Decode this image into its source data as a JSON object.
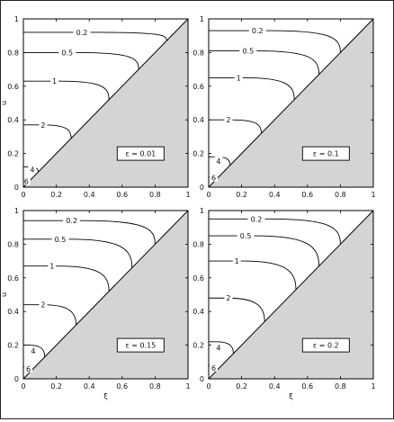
{
  "chart_data": [
    {
      "type": "line",
      "subtype": "contour",
      "legend": "ε = 0.01",
      "xlabel": "",
      "ylabel": "u",
      "xlim": [
        0,
        1
      ],
      "ylim": [
        0,
        1
      ],
      "x_ticks": [
        "0",
        "0.2",
        "0.4",
        "0.6",
        "0.8",
        "1"
      ],
      "y_ticks": [
        "0",
        "0.2",
        "0.4",
        "0.6",
        "0.8",
        "1"
      ],
      "shaded_region": "below diagonal y = x",
      "contours": [
        {
          "level": "0.2",
          "y_left": 0.92,
          "meets_diagonal_at": 0.87
        },
        {
          "level": "0.5",
          "y_left": 0.8,
          "meets_diagonal_at": 0.7
        },
        {
          "level": "1",
          "y_left": 0.63,
          "meets_diagonal_at": 0.52
        },
        {
          "level": "2",
          "y_left": 0.37,
          "meets_diagonal_at": 0.29
        },
        {
          "level": "4",
          "y_left": 0.12,
          "meets_diagonal_at": 0.09
        },
        {
          "level": "6",
          "y_left": 0.04,
          "meets_diagonal_at": 0.03
        }
      ]
    },
    {
      "type": "line",
      "subtype": "contour",
      "legend": "ε = 0.1",
      "xlabel": "",
      "ylabel": "",
      "xlim": [
        0,
        1
      ],
      "ylim": [
        0,
        1
      ],
      "x_ticks": [
        "0",
        "0.2",
        "0.4",
        "0.6",
        "0.8",
        "1"
      ],
      "y_ticks": [
        "0",
        "0.2",
        "0.4",
        "0.6",
        "0.8",
        "1"
      ],
      "shaded_region": "below diagonal y = x",
      "contours": [
        {
          "level": "0.2",
          "y_left": 0.93,
          "meets_diagonal_at": 0.8
        },
        {
          "level": "0.5",
          "y_left": 0.81,
          "meets_diagonal_at": 0.67
        },
        {
          "level": "1",
          "y_left": 0.65,
          "meets_diagonal_at": 0.52
        },
        {
          "level": "2",
          "y_left": 0.4,
          "meets_diagonal_at": 0.32
        },
        {
          "level": "4",
          "y_left": 0.18,
          "meets_diagonal_at": 0.13
        },
        {
          "level": "6",
          "y_left": 0.06,
          "meets_diagonal_at": 0.05
        }
      ]
    },
    {
      "type": "line",
      "subtype": "contour",
      "legend": "ε = 0.15",
      "xlabel": "ξ",
      "ylabel": "u",
      "xlim": [
        0,
        1
      ],
      "ylim": [
        0,
        1
      ],
      "x_ticks": [
        "0",
        "0.2",
        "0.4",
        "0.6",
        "0.8",
        "1"
      ],
      "y_ticks": [
        "0",
        "0.2",
        "0.4",
        "0.6",
        "0.8",
        "1"
      ],
      "shaded_region": "below diagonal y = x",
      "contours": [
        {
          "level": "0.2",
          "y_left": 0.94,
          "meets_diagonal_at": 0.8
        },
        {
          "level": "0.5",
          "y_left": 0.83,
          "meets_diagonal_at": 0.66
        },
        {
          "level": "1",
          "y_left": 0.67,
          "meets_diagonal_at": 0.52
        },
        {
          "level": "2",
          "y_left": 0.44,
          "meets_diagonal_at": 0.32
        },
        {
          "level": "4",
          "y_left": 0.2,
          "meets_diagonal_at": 0.13
        },
        {
          "level": "6",
          "y_left": 0.07,
          "meets_diagonal_at": 0.05
        }
      ]
    },
    {
      "type": "line",
      "subtype": "contour",
      "legend": "ε = 0.2",
      "xlabel": "ξ",
      "ylabel": "",
      "xlim": [
        0,
        1
      ],
      "ylim": [
        0,
        1
      ],
      "x_ticks": [
        "0",
        "0.2",
        "0.4",
        "0.6",
        "0.8",
        "1"
      ],
      "y_ticks": [
        "0",
        "0.2",
        "0.4",
        "0.6",
        "0.8",
        "1"
      ],
      "shaded_region": "below diagonal y = x",
      "contours": [
        {
          "level": "0.2",
          "y_left": 0.95,
          "meets_diagonal_at": 0.8
        },
        {
          "level": "0.5",
          "y_left": 0.85,
          "meets_diagonal_at": 0.67
        },
        {
          "level": "1",
          "y_left": 0.7,
          "meets_diagonal_at": 0.53
        },
        {
          "level": "2",
          "y_left": 0.48,
          "meets_diagonal_at": 0.34
        },
        {
          "level": "4",
          "y_left": 0.22,
          "meets_diagonal_at": 0.15
        },
        {
          "level": "6",
          "y_left": 0.08,
          "meets_diagonal_at": 0.05
        }
      ]
    }
  ]
}
